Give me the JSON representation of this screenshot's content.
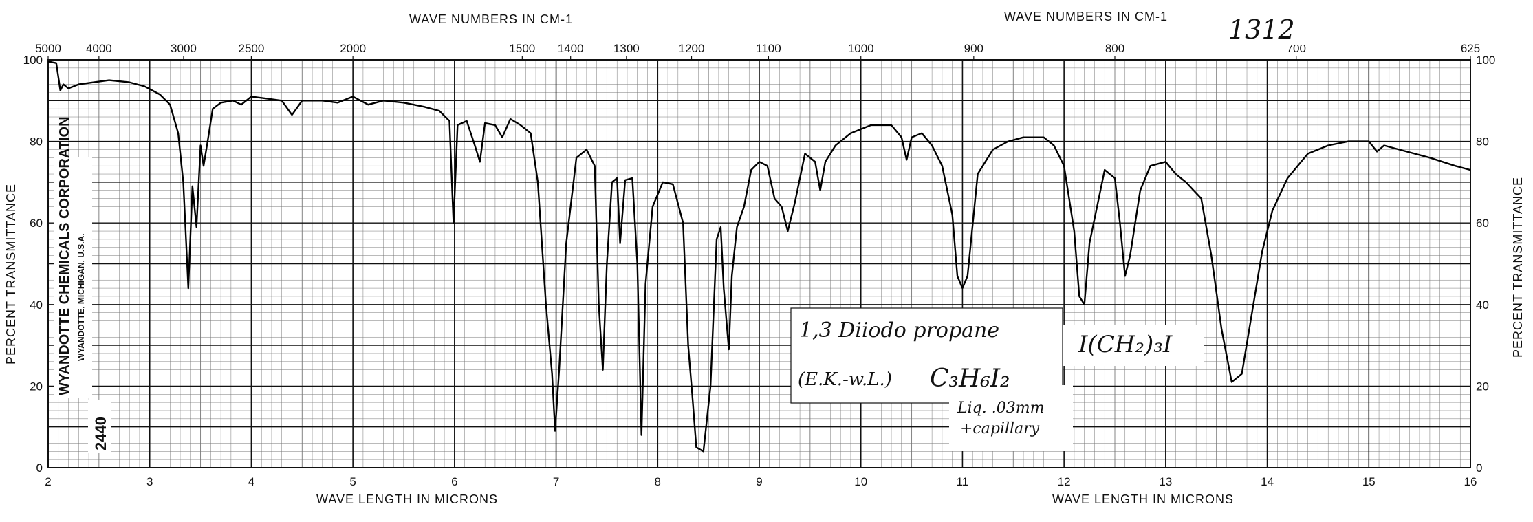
{
  "chart_data": {
    "type": "line",
    "top_axis_label": "WAVE NUMBERS IN CM-1",
    "top_axis_label_right": "WAVE NUMBERS IN CM-1",
    "bottom_axis_label": "WAVE LENGTH IN MICRONS",
    "bottom_axis_label_right": "WAVE LENGTH IN MICRONS",
    "ylabel": "PERCENT TRANSMITTANCE",
    "ylabel_right": "PERCENT TRANSMITTANCE",
    "xlim": [
      2,
      16
    ],
    "ylim": [
      0,
      100
    ],
    "x_ticks": [
      "2",
      "3",
      "4",
      "5",
      "6",
      "7",
      "8",
      "9",
      "10",
      "11",
      "12",
      "13",
      "14",
      "15",
      "16"
    ],
    "y_ticks_left": [
      "0",
      "20",
      "40",
      "60",
      "80",
      "100"
    ],
    "y_ticks_right": [
      "0",
      "20",
      "40",
      "60",
      "80",
      "100"
    ],
    "wavenumber_ticks": [
      {
        "label": "5000",
        "cm": 5000
      },
      {
        "label": "4000",
        "cm": 4000
      },
      {
        "label": "3000",
        "cm": 3000
      },
      {
        "label": "2500",
        "cm": 2500
      },
      {
        "label": "2000",
        "cm": 2000
      },
      {
        "label": "1500",
        "cm": 1500
      },
      {
        "label": "1400",
        "cm": 1400
      },
      {
        "label": "1300",
        "cm": 1300
      },
      {
        "label": "1200",
        "cm": 1200
      },
      {
        "label": "1100",
        "cm": 1100
      },
      {
        "label": "1000",
        "cm": 1000
      },
      {
        "label": "900",
        "cm": 900
      },
      {
        "label": "800",
        "cm": 800
      },
      {
        "label": "700",
        "cm": 700
      },
      {
        "label": "625",
        "cm": 625
      }
    ],
    "grid": true,
    "series": [
      {
        "points": [
          [
            2.0,
            99.6
          ],
          [
            2.08,
            99.2
          ],
          [
            2.12,
            92.5
          ],
          [
            2.15,
            94
          ],
          [
            2.2,
            93
          ],
          [
            2.3,
            94
          ],
          [
            2.45,
            94.5
          ],
          [
            2.6,
            95
          ],
          [
            2.8,
            94.5
          ],
          [
            2.95,
            93.5
          ],
          [
            3.1,
            91.5
          ],
          [
            3.2,
            89
          ],
          [
            3.28,
            82
          ],
          [
            3.33,
            70
          ],
          [
            3.38,
            44
          ],
          [
            3.42,
            69
          ],
          [
            3.46,
            59
          ],
          [
            3.5,
            79
          ],
          [
            3.53,
            74
          ],
          [
            3.57,
            80
          ],
          [
            3.62,
            88
          ],
          [
            3.7,
            89.5
          ],
          [
            3.82,
            90
          ],
          [
            3.9,
            89
          ],
          [
            4.0,
            91
          ],
          [
            4.15,
            90.5
          ],
          [
            4.3,
            90
          ],
          [
            4.4,
            86.5
          ],
          [
            4.5,
            90
          ],
          [
            4.7,
            90
          ],
          [
            4.85,
            89.5
          ],
          [
            5.0,
            91
          ],
          [
            5.15,
            89
          ],
          [
            5.3,
            90
          ],
          [
            5.5,
            89.5
          ],
          [
            5.7,
            88.5
          ],
          [
            5.85,
            87.5
          ],
          [
            5.95,
            85
          ],
          [
            5.99,
            60
          ],
          [
            6.03,
            84
          ],
          [
            6.12,
            85
          ],
          [
            6.2,
            79
          ],
          [
            6.25,
            75
          ],
          [
            6.3,
            84.5
          ],
          [
            6.4,
            84
          ],
          [
            6.47,
            81
          ],
          [
            6.55,
            85.5
          ],
          [
            6.65,
            84
          ],
          [
            6.75,
            82
          ],
          [
            6.82,
            70
          ],
          [
            6.9,
            40
          ],
          [
            6.96,
            23
          ],
          [
            6.99,
            9
          ],
          [
            7.03,
            24
          ],
          [
            7.1,
            55
          ],
          [
            7.2,
            76
          ],
          [
            7.3,
            78
          ],
          [
            7.38,
            74
          ],
          [
            7.42,
            40
          ],
          [
            7.46,
            24
          ],
          [
            7.5,
            50
          ],
          [
            7.55,
            70
          ],
          [
            7.6,
            71
          ],
          [
            7.63,
            55
          ],
          [
            7.68,
            70.5
          ],
          [
            7.75,
            71
          ],
          [
            7.8,
            50
          ],
          [
            7.84,
            8
          ],
          [
            7.88,
            45
          ],
          [
            7.95,
            64
          ],
          [
            8.05,
            70
          ],
          [
            8.15,
            69.5
          ],
          [
            8.25,
            60
          ],
          [
            8.3,
            30
          ],
          [
            8.34,
            18
          ],
          [
            8.38,
            5
          ],
          [
            8.45,
            4
          ],
          [
            8.52,
            20
          ],
          [
            8.58,
            56
          ],
          [
            8.62,
            59
          ],
          [
            8.65,
            44
          ],
          [
            8.7,
            29
          ],
          [
            8.73,
            47
          ],
          [
            8.78,
            59
          ],
          [
            8.85,
            64
          ],
          [
            8.92,
            73
          ],
          [
            9.0,
            75
          ],
          [
            9.08,
            74
          ],
          [
            9.15,
            66
          ],
          [
            9.22,
            64
          ],
          [
            9.28,
            58
          ],
          [
            9.35,
            65
          ],
          [
            9.45,
            77
          ],
          [
            9.55,
            75
          ],
          [
            9.6,
            68
          ],
          [
            9.65,
            75
          ],
          [
            9.75,
            79
          ],
          [
            9.9,
            82
          ],
          [
            10.1,
            84
          ],
          [
            10.3,
            84
          ],
          [
            10.4,
            81
          ],
          [
            10.45,
            75.5
          ],
          [
            10.5,
            81
          ],
          [
            10.6,
            82
          ],
          [
            10.7,
            79
          ],
          [
            10.8,
            74
          ],
          [
            10.9,
            62
          ],
          [
            10.95,
            47
          ],
          [
            11.0,
            44
          ],
          [
            11.05,
            47
          ],
          [
            11.15,
            72
          ],
          [
            11.3,
            78
          ],
          [
            11.45,
            80
          ],
          [
            11.6,
            81
          ],
          [
            11.8,
            81
          ],
          [
            11.9,
            79
          ],
          [
            12.0,
            74
          ],
          [
            12.1,
            58
          ],
          [
            12.15,
            42
          ],
          [
            12.2,
            40
          ],
          [
            12.25,
            55
          ],
          [
            12.4,
            73
          ],
          [
            12.5,
            71
          ],
          [
            12.55,
            60
          ],
          [
            12.6,
            47
          ],
          [
            12.65,
            52
          ],
          [
            12.75,
            68
          ],
          [
            12.85,
            74
          ],
          [
            13.0,
            75
          ],
          [
            13.1,
            72
          ],
          [
            13.2,
            70
          ],
          [
            13.35,
            66
          ],
          [
            13.45,
            52
          ],
          [
            13.55,
            34
          ],
          [
            13.65,
            21
          ],
          [
            13.75,
            23
          ],
          [
            13.85,
            38
          ],
          [
            13.95,
            53
          ],
          [
            14.05,
            63
          ],
          [
            14.2,
            71
          ],
          [
            14.4,
            77
          ],
          [
            14.6,
            79
          ],
          [
            14.8,
            80
          ],
          [
            15.0,
            80
          ],
          [
            15.08,
            77.5
          ],
          [
            15.15,
            79
          ],
          [
            15.3,
            78
          ],
          [
            15.6,
            76
          ],
          [
            15.85,
            74
          ],
          [
            16.0,
            73
          ]
        ]
      }
    ]
  },
  "annotations": {
    "sheet_number": "1312",
    "compound_name": "1,3 Diiodo propane",
    "formula_structural": "I(CH₂)₃I",
    "source_note": "(E.K.-w.L.)",
    "formula_molecular": "C₃H₆I₂",
    "sample_line1": "Liq. .03mm",
    "sample_line2": "+capillary"
  },
  "vendor": {
    "company": "WYANDOTTE CHEMICALS CORPORATION",
    "location": "WYANDOTTE, MICHIGAN, U.S.A.",
    "chart_code": "2440"
  },
  "colors": {
    "grid": "#111111",
    "minor_grid": "#777777",
    "trace": "#000000",
    "paper": "#ffffff"
  }
}
